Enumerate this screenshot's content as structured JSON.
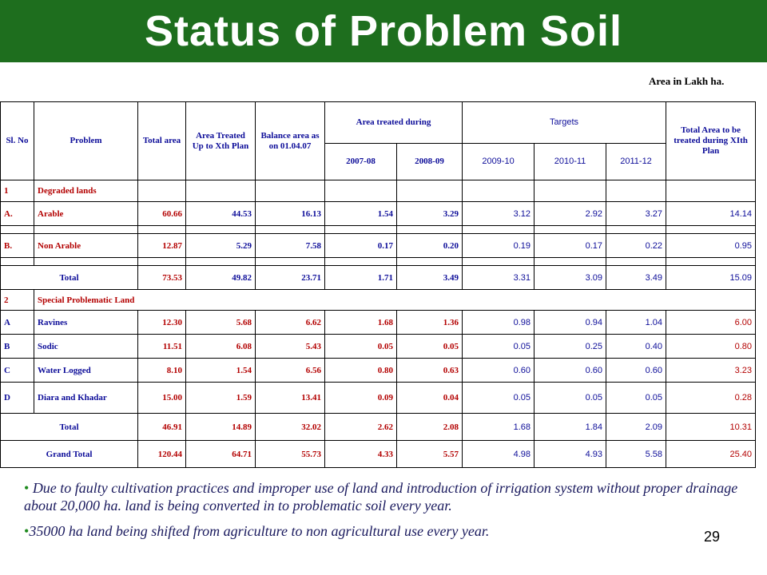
{
  "header": {
    "title": "Status of Problem Soil"
  },
  "units_note": "Area in Lakh ha.",
  "table": {
    "headers": {
      "sl_no": "Sl. No",
      "problem": "Problem",
      "total_area": "Total area",
      "area_treated": "Area Treated Up to Xth Plan",
      "balance_area": "Balance area as on 01.04.07",
      "area_treated_during": "Area treated during",
      "targets": "Targets",
      "total_xi": "Total Area to be treated during XIth Plan",
      "y2007": "2007-08",
      "y2008": "2008-09",
      "y2009": "2009-10",
      "y2010": "2010-11",
      "y2011": "2011-12"
    },
    "section1": {
      "no": "1",
      "label": "Degraded lands"
    },
    "rows1": [
      {
        "sl": "A.",
        "problem": "Arable",
        "total_area": "60.66",
        "treated_x": "44.53",
        "balance": "16.13",
        "y2007": "1.54",
        "y2008": "3.29",
        "y2009": "3.12",
        "y2010": "2.92",
        "y2011": "3.27",
        "total_xi": "14.14"
      },
      {
        "sl": "B.",
        "problem": "Non Arable",
        "total_area": "12.87",
        "treated_x": "5.29",
        "balance": "7.58",
        "y2007": "0.17",
        "y2008": "0.20",
        "y2009": "0.19",
        "y2010": "0.17",
        "y2011": "0.22",
        "total_xi": "0.95"
      }
    ],
    "total1": {
      "label": "Total",
      "total_area": "73.53",
      "treated_x": "49.82",
      "balance": "23.71",
      "y2007": "1.71",
      "y2008": "3.49",
      "y2009": "3.31",
      "y2010": "3.09",
      "y2011": "3.49",
      "total_xi": "15.09"
    },
    "section2": {
      "no": "2",
      "label": "Special Problematic Land"
    },
    "rows2": [
      {
        "sl": "A",
        "problem": "Ravines",
        "total_area": "12.30",
        "treated_x": "5.68",
        "balance": "6.62",
        "y2007": "1.68",
        "y2008": "1.36",
        "y2009": "0.98",
        "y2010": "0.94",
        "y2011": "1.04",
        "total_xi": "6.00"
      },
      {
        "sl": "B",
        "problem": "Sodic",
        "total_area": "11.51",
        "treated_x": "6.08",
        "balance": "5.43",
        "y2007": "0.05",
        "y2008": "0.05",
        "y2009": "0.05",
        "y2010": "0.25",
        "y2011": "0.40",
        "total_xi": "0.80"
      },
      {
        "sl": "C",
        "problem": "Water Logged",
        "total_area": "8.10",
        "treated_x": "1.54",
        "balance": "6.56",
        "y2007": "0.80",
        "y2008": "0.63",
        "y2009": "0.60",
        "y2010": "0.60",
        "y2011": "0.60",
        "total_xi": "3.23"
      },
      {
        "sl": "D",
        "problem": "Diara and Khadar",
        "total_area": "15.00",
        "treated_x": "1.59",
        "balance": "13.41",
        "y2007": "0.09",
        "y2008": "0.04",
        "y2009": "0.05",
        "y2010": "0.05",
        "y2011": "0.05",
        "total_xi": "0.28"
      }
    ],
    "total2": {
      "label": "Total",
      "total_area": "46.91",
      "treated_x": "14.89",
      "balance": "32.02",
      "y2007": "2.62",
      "y2008": "2.08",
      "y2009": "1.68",
      "y2010": "1.84",
      "y2011": "2.09",
      "total_xi": "10.31"
    },
    "grand_total": {
      "label": "Grand Total",
      "total_area": "120.44",
      "treated_x": "64.71",
      "balance": "55.73",
      "y2007": "4.33",
      "y2008": "5.57",
      "y2009": "4.98",
      "y2010": "4.93",
      "y2011": "5.58",
      "total_xi": "25.40"
    }
  },
  "bullets": [
    "Due to faulty cultivation practices  and improper use of land and introduction of irrigation system without proper drainage about 20,000 ha. land is being converted  in to problematic soil every year.",
    "35000 ha  land being shifted from agriculture to non agricultural use every  year."
  ],
  "page_number": "29",
  "colors": {
    "title_bar": "#1e6e1e",
    "table_text": "#0d0d99",
    "label_red": "#b30000",
    "bullet_text": "#1a1a5e"
  }
}
